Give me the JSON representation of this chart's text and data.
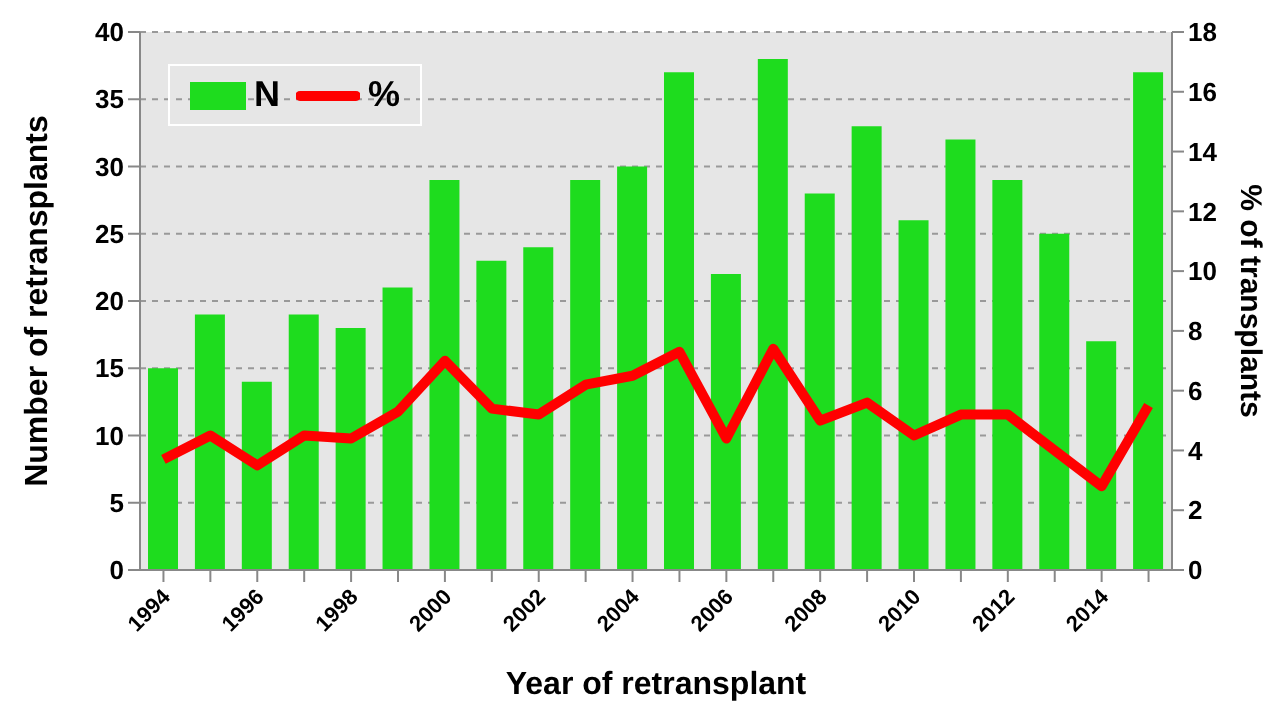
{
  "chart_data": {
    "type": "bar",
    "xlabel": "Year of retransplant",
    "ylabel": "Number of retransplants",
    "y2label": "% of transplants",
    "categories": [
      "1994",
      null,
      "1996",
      null,
      "1998",
      null,
      "2000",
      null,
      "2002",
      null,
      "2004",
      null,
      "2006",
      null,
      "2008",
      null,
      "2010",
      null,
      "2012",
      null,
      "2014",
      null
    ],
    "series": [
      {
        "name": "N",
        "color": "#1edc1e",
        "values": [
          15,
          19,
          14,
          19,
          18,
          21,
          29,
          23,
          24,
          29,
          30,
          37,
          22,
          38,
          28,
          33,
          26,
          32,
          29,
          25,
          17,
          37
        ]
      },
      {
        "name": "%",
        "type": "line",
        "axis": "y2",
        "color": "#ff0000",
        "values": [
          3.7,
          4.5,
          3.5,
          4.5,
          4.4,
          5.3,
          7.0,
          5.4,
          5.2,
          6.2,
          6.5,
          7.3,
          4.4,
          7.4,
          5.0,
          5.6,
          4.5,
          5.2,
          5.2,
          4.0,
          2.8,
          5.5
        ]
      }
    ],
    "ylim": [
      0,
      40
    ],
    "yticks": [
      0,
      5,
      10,
      15,
      20,
      25,
      30,
      35,
      40
    ],
    "y2lim": [
      0,
      18
    ],
    "y2ticks": [
      0,
      2,
      4,
      6,
      8,
      10,
      12,
      14,
      16,
      18
    ],
    "grid": "y",
    "legend": "top left",
    "marker": "none",
    "line_style": "solid"
  }
}
